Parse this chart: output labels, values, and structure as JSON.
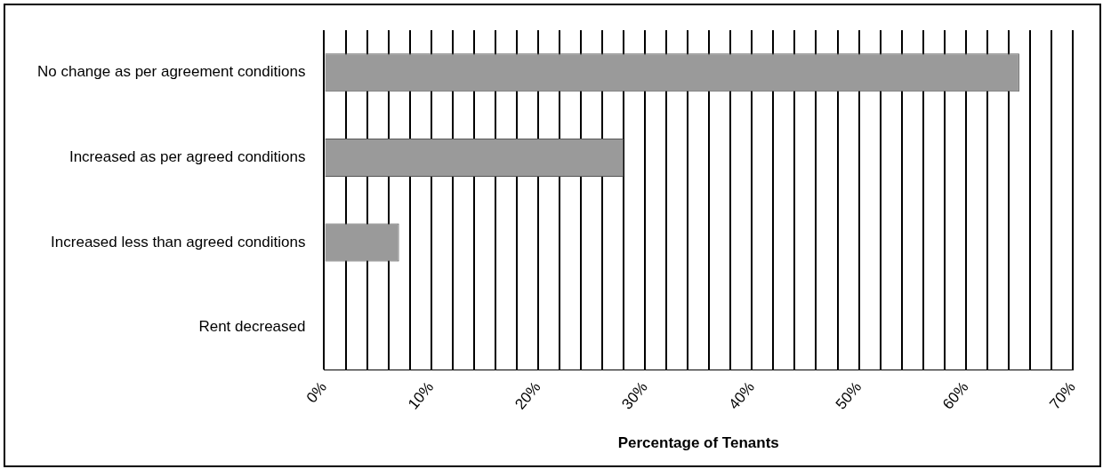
{
  "chart_data": {
    "type": "bar",
    "orientation": "horizontal",
    "xlabel": "Percentage of Tenants",
    "categories": [
      "No change as per agreement conditions",
      "Increased as per agreed conditions",
      "Increased less than agreed conditions",
      "Rent decreased"
    ],
    "values": [
      65,
      28,
      7,
      0
    ],
    "color": "#9a9a9a",
    "xlim": [
      0,
      70
    ],
    "xticks": [
      {
        "value": 0,
        "label": "0%"
      },
      {
        "value": 2,
        "label": null
      },
      {
        "value": 4,
        "label": null
      },
      {
        "value": 6,
        "label": null
      },
      {
        "value": 8,
        "label": null
      },
      {
        "value": 10,
        "label": "10%"
      },
      {
        "value": 12,
        "label": null
      },
      {
        "value": 14,
        "label": null
      },
      {
        "value": 16,
        "label": null
      },
      {
        "value": 18,
        "label": null
      },
      {
        "value": 20,
        "label": "20%"
      },
      {
        "value": 22,
        "label": null
      },
      {
        "value": 24,
        "label": null
      },
      {
        "value": 26,
        "label": null
      },
      {
        "value": 28,
        "label": null
      },
      {
        "value": 30,
        "label": "30%"
      },
      {
        "value": 32,
        "label": null
      },
      {
        "value": 34,
        "label": null
      },
      {
        "value": 36,
        "label": null
      },
      {
        "value": 38,
        "label": null
      },
      {
        "value": 40,
        "label": "40%"
      },
      {
        "value": 42,
        "label": null
      },
      {
        "value": 44,
        "label": null
      },
      {
        "value": 46,
        "label": null
      },
      {
        "value": 48,
        "label": null
      },
      {
        "value": 50,
        "label": "50%"
      },
      {
        "value": 52,
        "label": null
      },
      {
        "value": 54,
        "label": null
      },
      {
        "value": 56,
        "label": null
      },
      {
        "value": 58,
        "label": null
      },
      {
        "value": 60,
        "label": "60%"
      },
      {
        "value": 62,
        "label": null
      },
      {
        "value": 64,
        "label": null
      },
      {
        "value": 66,
        "label": null
      },
      {
        "value": 68,
        "label": null
      },
      {
        "value": 70,
        "label": "70%"
      }
    ],
    "grid": "x",
    "legend": false
  }
}
